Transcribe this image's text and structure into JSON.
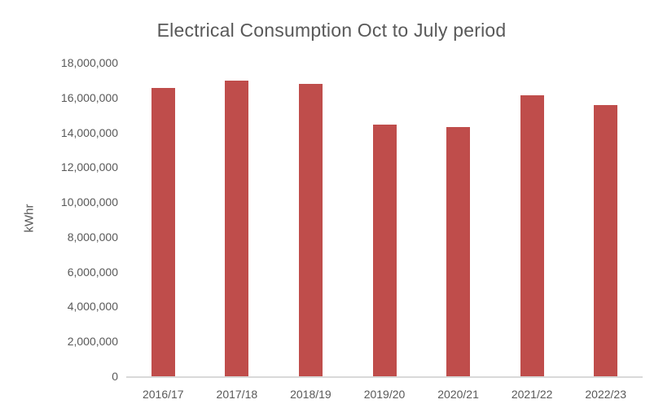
{
  "chart_data": {
    "type": "bar",
    "title": "Electrical Consumption Oct to July period",
    "xlabel": "",
    "ylabel": "kWhr",
    "categories": [
      "2016/17",
      "2017/18",
      "2018/19",
      "2019/20",
      "2020/21",
      "2021/22",
      "2022/23"
    ],
    "values": [
      16550000,
      16950000,
      16800000,
      14450000,
      14300000,
      16150000,
      15550000
    ],
    "ylim": [
      0,
      18000000
    ],
    "yticks": [
      0,
      2000000,
      4000000,
      6000000,
      8000000,
      10000000,
      12000000,
      14000000,
      16000000,
      18000000
    ],
    "grid": false,
    "legend": false,
    "bar_color": "#bf4d4b",
    "text_color": "#595959",
    "axis_line_color": "#d9d9d9",
    "background_color": "#ffffff"
  }
}
